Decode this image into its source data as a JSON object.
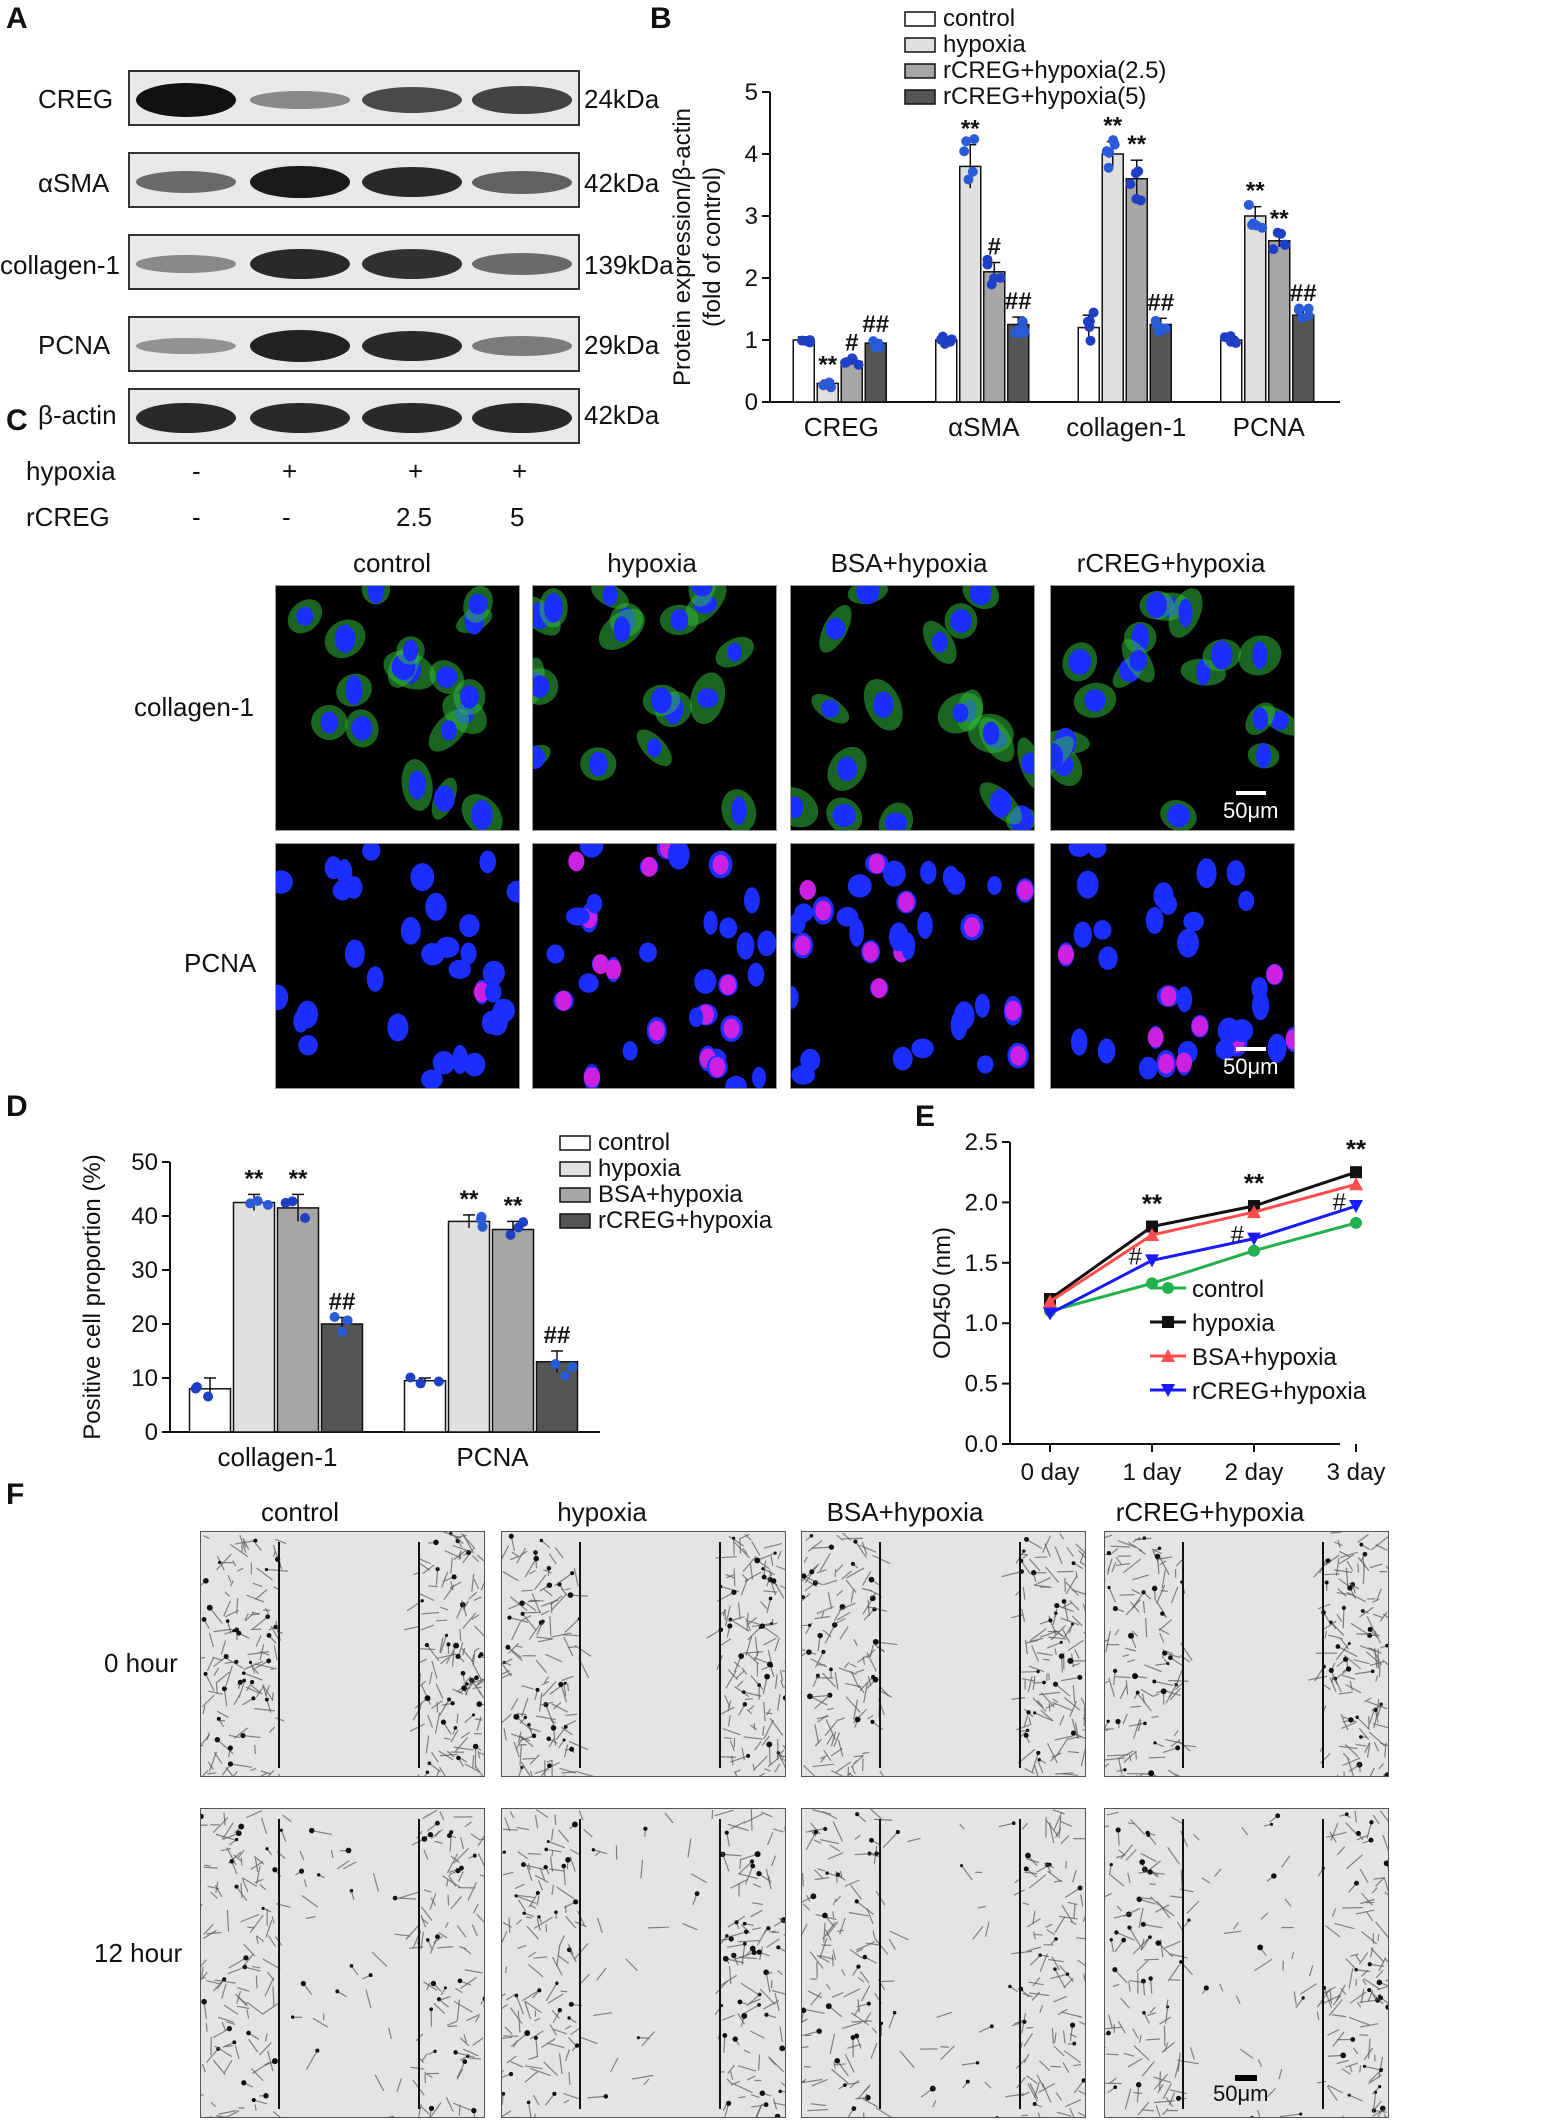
{
  "panels": {
    "A": "A",
    "B": "B",
    "C": "C",
    "D": "D",
    "E": "E",
    "F": "F"
  },
  "panelA": {
    "rows": [
      {
        "name": "CREG",
        "kda": "24kDa",
        "intensity": [
          1.0,
          0.25,
          0.65,
          0.7
        ]
      },
      {
        "name": "αSMA",
        "kda": "42kDa",
        "intensity": [
          0.45,
          0.95,
          0.85,
          0.5
        ]
      },
      {
        "name": "collagen-1",
        "kda": "139kDa",
        "intensity": [
          0.25,
          0.85,
          0.8,
          0.45
        ]
      },
      {
        "name": "PCNA",
        "kda": "29kDa",
        "intensity": [
          0.2,
          0.9,
          0.85,
          0.35
        ]
      },
      {
        "name": "β-actin",
        "kda": "42kDa",
        "intensity": [
          0.85,
          0.85,
          0.85,
          0.85
        ]
      }
    ],
    "treatments": [
      {
        "name": "hypoxia",
        "values": [
          "-",
          "+",
          "+",
          "+"
        ]
      },
      {
        "name": "rCREG",
        "values": [
          "-",
          "-",
          "2.5",
          "5"
        ]
      }
    ]
  },
  "panelC": {
    "columns": [
      "control",
      "hypoxia",
      "BSA+hypoxia",
      "rCREG+hypoxia"
    ],
    "rows": [
      "collagen-1",
      "PCNA"
    ],
    "scalebar": "50μm"
  },
  "panelF": {
    "columns": [
      "control",
      "hypoxia",
      "BSA+hypoxia",
      "rCREG+hypoxia"
    ],
    "rows": [
      "0 hour",
      "12 hour"
    ],
    "scalebar": "50μm"
  },
  "chart_data": [
    {
      "id": "B",
      "type": "bar",
      "ylabel": "Protein expression/β-actin\n(fold of control)",
      "ylim": [
        0,
        5
      ],
      "yticks": [
        "0",
        "1",
        "2",
        "3",
        "4",
        "5"
      ],
      "categories": [
        "CREG",
        "αSMA",
        "collagen-1",
        "PCNA"
      ],
      "legend_position": "top-right",
      "series": [
        {
          "name": "control",
          "color": "#ffffff",
          "values": [
            1.0,
            1.0,
            1.2,
            1.0
          ]
        },
        {
          "name": "hypoxia",
          "color": "#e0e0e0",
          "values": [
            0.3,
            3.8,
            4.0,
            3.0
          ]
        },
        {
          "name": "rCREG+hypoxia(2.5)",
          "color": "#a6a6a6",
          "values": [
            0.65,
            2.1,
            3.6,
            2.6
          ]
        },
        {
          "name": "rCREG+hypoxia(5)",
          "color": "#555555",
          "values": [
            0.95,
            1.25,
            1.25,
            1.4
          ]
        }
      ],
      "errors": [
        [
          0.05,
          0.05,
          0.2,
          0.05
        ],
        [
          0.05,
          0.35,
          0.2,
          0.15
        ],
        [
          0.05,
          0.15,
          0.3,
          0.1
        ],
        [
          0.05,
          0.12,
          0.1,
          0.1
        ]
      ],
      "annotations": [
        [
          "",
          "",
          "",
          ""
        ],
        [
          "**",
          "**",
          "**",
          "**"
        ],
        [
          "#",
          "#",
          "**",
          "**"
        ],
        [
          "##",
          "##",
          "##",
          "##"
        ]
      ]
    },
    {
      "id": "D",
      "type": "bar",
      "ylabel": "Positive cell proportion (%)",
      "ylim": [
        0,
        50
      ],
      "yticks": [
        "0",
        "10",
        "20",
        "30",
        "40",
        "50"
      ],
      "categories": [
        "collagen-1",
        "PCNA"
      ],
      "legend_position": "top-right",
      "series": [
        {
          "name": "control",
          "color": "#ffffff",
          "values": [
            8,
            9.5
          ]
        },
        {
          "name": "hypoxia",
          "color": "#e0e0e0",
          "values": [
            42.5,
            39
          ]
        },
        {
          "name": "BSA+hypoxia",
          "color": "#a6a6a6",
          "values": [
            41.5,
            37.5
          ]
        },
        {
          "name": "rCREG+hypoxia",
          "color": "#555555",
          "values": [
            20,
            13
          ]
        }
      ],
      "errors": [
        [
          2,
          0.5
        ],
        [
          1.5,
          1.2
        ],
        [
          2.5,
          1.5
        ],
        [
          1.2,
          2
        ]
      ],
      "annotations": [
        [
          "",
          ""
        ],
        [
          "**",
          "**"
        ],
        [
          "**",
          "**"
        ],
        [
          "##",
          "##"
        ]
      ]
    },
    {
      "id": "E",
      "type": "line",
      "ylabel": "OD450 (nm)",
      "ylim": [
        0,
        2.5
      ],
      "yticks": [
        "0.0",
        "0.5",
        "1.0",
        "1.5",
        "2.0",
        "2.5"
      ],
      "categories": [
        "0 day",
        "1 day",
        "2 day",
        "3 day"
      ],
      "legend_position": "bottom-right",
      "series": [
        {
          "name": "control",
          "color": "#22b14c",
          "marker": "circle",
          "values": [
            1.1,
            1.33,
            1.6,
            1.83
          ]
        },
        {
          "name": "hypoxia",
          "color": "#111111",
          "marker": "square",
          "values": [
            1.2,
            1.8,
            1.97,
            2.25
          ]
        },
        {
          "name": "BSA+hypoxia",
          "color": "#ff4d4d",
          "marker": "triangle-up",
          "values": [
            1.18,
            1.73,
            1.92,
            2.15
          ]
        },
        {
          "name": "rCREG+hypoxia",
          "color": "#1a1aff",
          "marker": "triangle-down",
          "values": [
            1.08,
            1.52,
            1.7,
            1.97
          ]
        }
      ],
      "annotations": [
        {
          "x": "1 day",
          "text": "**"
        },
        {
          "x": "2 day",
          "text": "**"
        },
        {
          "x": "3 day",
          "text": "**"
        },
        {
          "x": "1 day",
          "text": "#"
        },
        {
          "x": "2 day",
          "text": "#"
        },
        {
          "x": "3 day",
          "text": "#"
        }
      ]
    }
  ]
}
